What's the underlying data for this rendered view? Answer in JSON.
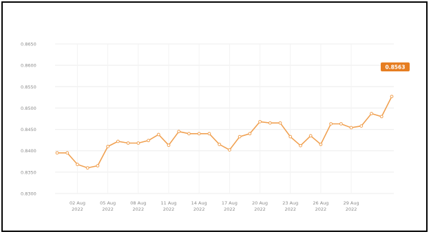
{
  "chart_data": {
    "type": "line",
    "title": "",
    "xlabel": "",
    "ylabel": "",
    "ylim": [
      0.83,
      0.865
    ],
    "yticks": [
      "0.8650",
      "0.8600",
      "0.8550",
      "0.8500",
      "0.8450",
      "0.8400",
      "0.8350",
      "0.8300"
    ],
    "xticks": [
      {
        "day": 2,
        "line1": "02 Aug",
        "line2": "2022"
      },
      {
        "day": 5,
        "line1": "05 Aug",
        "line2": "2022"
      },
      {
        "day": 8,
        "line1": "08 Aug",
        "line2": "2022"
      },
      {
        "day": 11,
        "line1": "11 Aug",
        "line2": "2022"
      },
      {
        "day": 14,
        "line1": "14 Aug",
        "line2": "2022"
      },
      {
        "day": 17,
        "line1": "17 Aug",
        "line2": "2022"
      },
      {
        "day": 20,
        "line1": "20 Aug",
        "line2": "2022"
      },
      {
        "day": 23,
        "line1": "23 Aug",
        "line2": "2022"
      },
      {
        "day": 26,
        "line1": "26 Aug",
        "line2": "2022"
      },
      {
        "day": 29,
        "line1": "29 Aug",
        "line2": "2022"
      }
    ],
    "grid": true,
    "line_color": "#f0a050",
    "accent_color": "#e67e22",
    "last_value_label": "0.8563",
    "x": [
      0,
      1,
      2,
      3,
      4,
      5,
      6,
      7,
      8,
      9,
      10,
      11,
      12,
      13,
      14,
      15,
      16,
      17,
      18,
      19,
      20,
      21,
      22,
      23,
      24,
      25,
      26,
      27,
      28,
      29,
      30,
      31,
      32,
      33,
      34,
      35,
      36,
      37,
      38,
      39,
      40,
      41,
      42,
      43
    ],
    "days": [
      31,
      1,
      2,
      3,
      4,
      5,
      6,
      7,
      8,
      9,
      10,
      11,
      12,
      13,
      14,
      15,
      16,
      17,
      18,
      19,
      20,
      21,
      22,
      23,
      24,
      25,
      26,
      27,
      27.5,
      28,
      29,
      29.5,
      30,
      30.5,
      31,
      31.5,
      32,
      32.5,
      33,
      33.4,
      33.6,
      33.8,
      34,
      34.3
    ],
    "values": [
      0.8395,
      0.8395,
      0.8368,
      0.836,
      0.8365,
      0.841,
      0.8422,
      0.8418,
      0.8418,
      0.8424,
      0.8438,
      0.8413,
      0.8445,
      0.844,
      0.844,
      0.844,
      0.8415,
      0.8402,
      0.8433,
      0.844,
      0.8468,
      0.8465,
      0.8465,
      0.8433,
      0.8412,
      0.8435,
      0.8415,
      0.8463,
      0.8463,
      0.8454,
      0.8463,
      0.8463,
      0.85,
      0.85,
      0.8563,
      0.8563,
      0.8563,
      0.8563,
      0.8563,
      0.8563,
      0.8563,
      0.8563,
      0.8563,
      0.8563
    ]
  }
}
